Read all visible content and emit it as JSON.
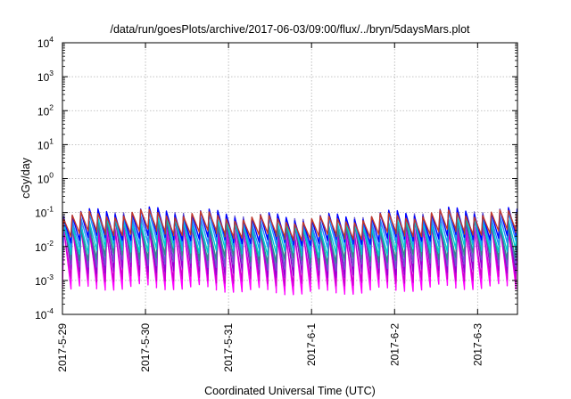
{
  "chart_data": {
    "type": "line",
    "title": "/data/run/goesPlots/archive/2017-06-03/09:00/flux/../bryn/5daysMars.plot",
    "xlabel": "Coordinated Universal Time (UTC)",
    "ylabel": "cGy/day",
    "yscale": "log",
    "ylim": [
      0.0001,
      10000
    ],
    "y_ticks": [
      {
        "base": "10",
        "exp": "-4"
      },
      {
        "base": "10",
        "exp": "-3"
      },
      {
        "base": "10",
        "exp": "-2"
      },
      {
        "base": "10",
        "exp": "-1"
      },
      {
        "base": "10",
        "exp": "0"
      },
      {
        "base": "10",
        "exp": "1"
      },
      {
        "base": "10",
        "exp": "2"
      },
      {
        "base": "10",
        "exp": "3"
      },
      {
        "base": "10",
        "exp": "4"
      }
    ],
    "x_ticks": [
      "2017-5-29",
      "2017-5-30",
      "2017-5-31",
      "2017-6-1",
      "2017-6-2",
      "2017-6-3"
    ],
    "xlim_days": [
      0,
      5.48
    ],
    "grid": true,
    "legend": "none",
    "cycle_period_days": 0.103,
    "series": [
      {
        "color": "#ff00ff",
        "peak_log": -1.45,
        "trough_log": -3.25
      },
      {
        "color": "#cc00cc",
        "peak_log": -1.6,
        "trough_log": -3.0
      },
      {
        "color": "#9400d3",
        "peak_log": -1.3,
        "trough_log": -2.75
      },
      {
        "color": "#6a5acd",
        "peak_log": -1.2,
        "trough_log": -2.55
      },
      {
        "color": "#2e8b8b",
        "peak_log": -1.4,
        "trough_log": -2.35
      },
      {
        "color": "#00ced1",
        "peak_log": -1.3,
        "trough_log": -2.15
      },
      {
        "color": "#1e90ff",
        "peak_log": -1.15,
        "trough_log": -1.95
      },
      {
        "color": "#0000ff",
        "peak_log": -1.05,
        "trough_log": -1.8
      },
      {
        "color": "#c0392b",
        "peak_log": -1.12,
        "trough_log": -1.65
      }
    ]
  }
}
